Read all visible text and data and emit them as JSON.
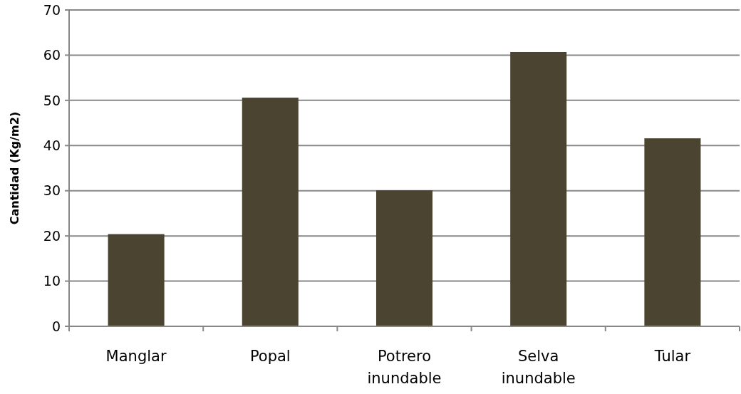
{
  "chart_data": {
    "type": "bar",
    "ylabel": "Cantidad (Kg/m2)",
    "categories": [
      "Manglar",
      "Popal",
      "Potrero inundable",
      "Selva inundable",
      "Tular"
    ],
    "values": [
      20.4,
      50.6,
      30.1,
      60.7,
      41.6
    ],
    "color": "#4a4430",
    "ylim": [
      0,
      70
    ],
    "yticks": [
      0,
      10,
      20,
      30,
      40,
      50,
      60,
      70
    ],
    "grid": "y"
  }
}
